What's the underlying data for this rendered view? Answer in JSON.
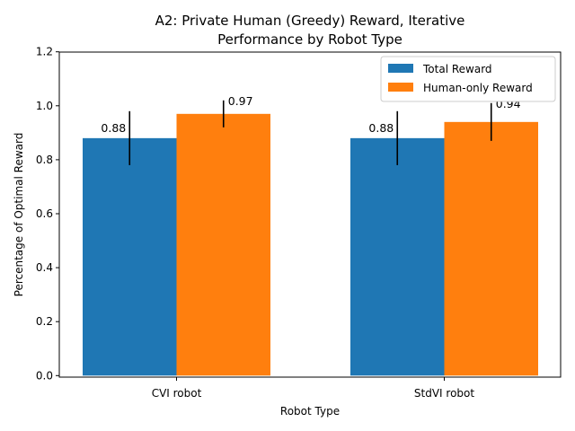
{
  "chart_data": {
    "type": "bar",
    "title_line1": "A2: Private Human (Greedy) Reward, Iterative",
    "title_line2": "Performance by Robot Type",
    "xlabel": "Robot Type",
    "ylabel": "Percentage of Optimal Reward",
    "categories": [
      "CVI robot",
      "StdVI robot"
    ],
    "ylim": [
      0,
      1.2
    ],
    "yticks": [
      "0.0",
      "0.2",
      "0.4",
      "0.6",
      "0.8",
      "1.0",
      "1.2"
    ],
    "grid": false,
    "legend_position": "top-right",
    "series": [
      {
        "name": "Total Reward",
        "color": "#1f77b4",
        "values": [
          0.88,
          0.88
        ],
        "error": [
          0.1,
          0.1
        ],
        "labels": [
          "0.88",
          "0.88"
        ]
      },
      {
        "name": "Human-only Reward",
        "color": "#ff7f0e",
        "values": [
          0.97,
          0.94
        ],
        "error": [
          0.05,
          0.07
        ],
        "labels": [
          "0.97",
          "0.94"
        ]
      }
    ]
  }
}
